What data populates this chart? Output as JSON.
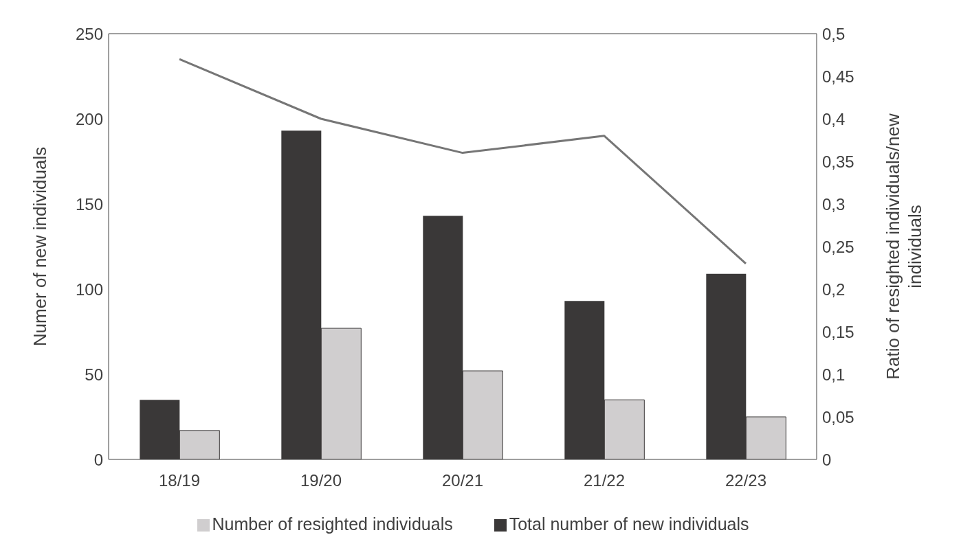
{
  "chart_data": {
    "type": "bar",
    "categories": [
      "18/19",
      "19/20",
      "20/21",
      "21/22",
      "22/23"
    ],
    "series": [
      {
        "name": "Total number of new individuals",
        "color": "#3a3838",
        "values": [
          35,
          193,
          143,
          93,
          109
        ]
      },
      {
        "name": "Number of resighted individuals",
        "color": "#d0cecf",
        "values": [
          17,
          77,
          52,
          35,
          25
        ]
      },
      {
        "type": "line",
        "axis": "y2",
        "color": "#767676",
        "values": [
          0.47,
          0.4,
          0.36,
          0.38,
          0.23
        ]
      }
    ],
    "ylabel": "Numer of new individuals",
    "y2label": "Ratio of resighted individuals/new individuals",
    "ylim": [
      0,
      250
    ],
    "yticks": [
      0,
      50,
      100,
      150,
      200,
      250
    ],
    "y2lim": [
      0,
      0.5
    ],
    "y2ticks": [
      0,
      {
        "value": 0.05,
        "label": "0,05"
      },
      {
        "value": 0.1,
        "label": "0,1"
      },
      {
        "value": 0.15,
        "label": "0,15"
      },
      {
        "value": 0.2,
        "label": "0,2"
      },
      {
        "value": 0.25,
        "label": "0,25"
      },
      {
        "value": 0.3,
        "label": "0,3"
      },
      {
        "value": 0.35,
        "label": "0,35"
      },
      {
        "value": 0.4,
        "label": "0,4"
      },
      {
        "value": 0.45,
        "label": "0,45"
      },
      {
        "value": 0.5,
        "label": "0,5"
      }
    ],
    "legend": "bottom",
    "grid": false,
    "marker": "none",
    "line_style": "solid"
  }
}
